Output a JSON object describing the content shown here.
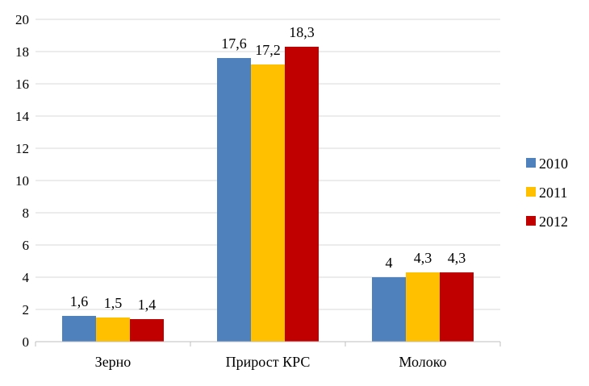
{
  "chart_data": {
    "type": "bar",
    "categories": [
      "Зерно",
      "Прирост КРС",
      "Молоко"
    ],
    "series": [
      {
        "name": "2010",
        "values": [
          1.6,
          17.6,
          4.0
        ],
        "labels": [
          "1,6",
          "17,6",
          "4"
        ],
        "color": "#4f81bd"
      },
      {
        "name": "2011",
        "values": [
          1.5,
          17.2,
          4.3
        ],
        "labels": [
          "1,5",
          "17,2",
          "4,3"
        ],
        "color": "#ffc000"
      },
      {
        "name": "2012",
        "values": [
          1.4,
          18.3,
          4.3
        ],
        "labels": [
          "1,4",
          "18,3",
          "4,3"
        ],
        "color": "#c00000"
      }
    ],
    "ylim": [
      0,
      20
    ],
    "yticks": [
      0,
      2,
      4,
      6,
      8,
      10,
      12,
      14,
      16,
      18,
      20
    ],
    "grid": true,
    "legend": "right",
    "title": "",
    "xlabel": "",
    "ylabel": ""
  }
}
